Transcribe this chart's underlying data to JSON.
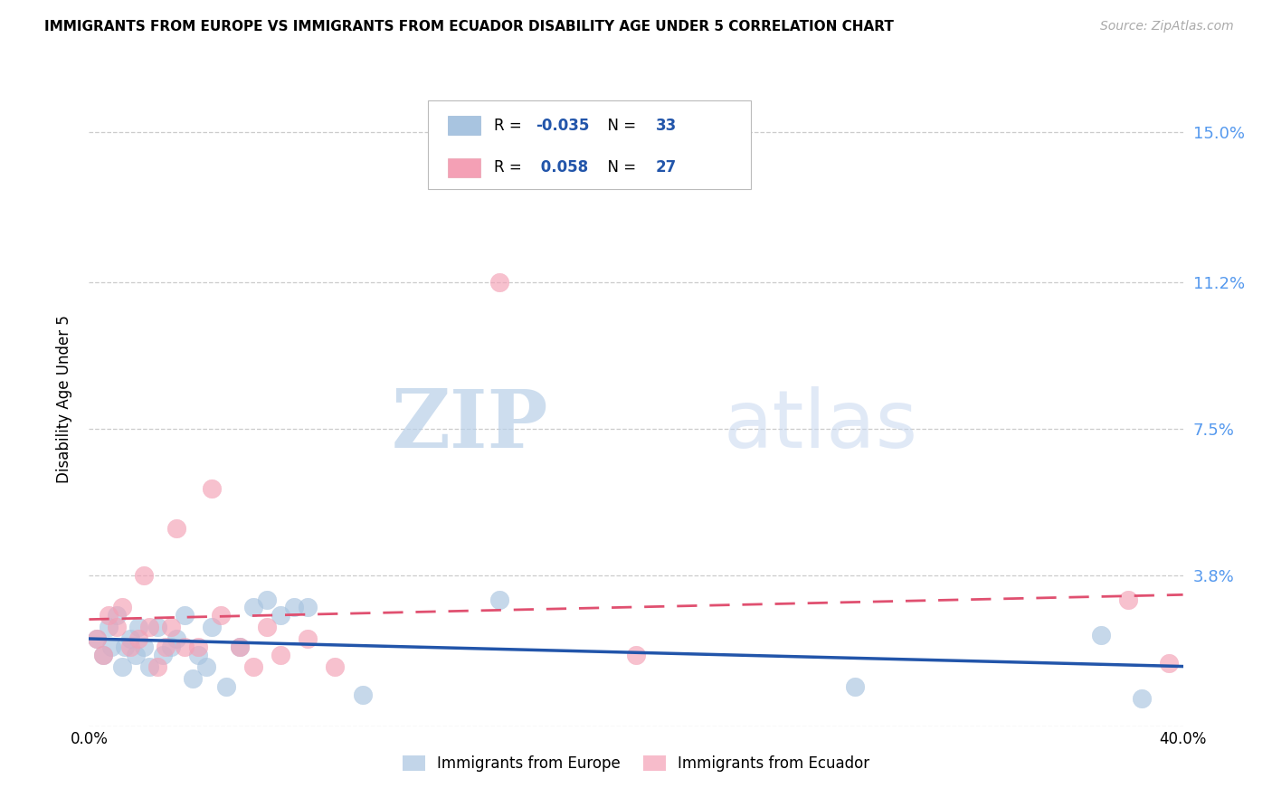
{
  "title": "IMMIGRANTS FROM EUROPE VS IMMIGRANTS FROM ECUADOR DISABILITY AGE UNDER 5 CORRELATION CHART",
  "source": "Source: ZipAtlas.com",
  "ylabel": "Disability Age Under 5",
  "xlim": [
    0.0,
    0.4
  ],
  "ylim": [
    0.0,
    0.165
  ],
  "yticks": [
    0.0,
    0.038,
    0.075,
    0.112,
    0.15
  ],
  "ytick_labels": [
    "",
    "3.8%",
    "7.5%",
    "11.2%",
    "15.0%"
  ],
  "xticks": [
    0.0,
    0.1,
    0.2,
    0.3,
    0.4
  ],
  "xtick_labels": [
    "0.0%",
    "",
    "",
    "",
    "40.0%"
  ],
  "europe_x": [
    0.003,
    0.005,
    0.007,
    0.008,
    0.01,
    0.012,
    0.013,
    0.015,
    0.017,
    0.018,
    0.02,
    0.022,
    0.025,
    0.027,
    0.03,
    0.032,
    0.035,
    0.038,
    0.04,
    0.043,
    0.045,
    0.05,
    0.055,
    0.06,
    0.065,
    0.07,
    0.075,
    0.08,
    0.1,
    0.15,
    0.28,
    0.37,
    0.385
  ],
  "europe_y": [
    0.022,
    0.018,
    0.025,
    0.02,
    0.028,
    0.015,
    0.02,
    0.022,
    0.018,
    0.025,
    0.02,
    0.015,
    0.025,
    0.018,
    0.02,
    0.022,
    0.028,
    0.012,
    0.018,
    0.015,
    0.025,
    0.01,
    0.02,
    0.03,
    0.032,
    0.028,
    0.03,
    0.03,
    0.008,
    0.032,
    0.01,
    0.023,
    0.007
  ],
  "ecuador_x": [
    0.003,
    0.005,
    0.007,
    0.01,
    0.012,
    0.015,
    0.018,
    0.02,
    0.022,
    0.025,
    0.028,
    0.03,
    0.032,
    0.035,
    0.04,
    0.045,
    0.048,
    0.055,
    0.06,
    0.065,
    0.07,
    0.08,
    0.09,
    0.15,
    0.2,
    0.38,
    0.395
  ],
  "ecuador_y": [
    0.022,
    0.018,
    0.028,
    0.025,
    0.03,
    0.02,
    0.022,
    0.038,
    0.025,
    0.015,
    0.02,
    0.025,
    0.05,
    0.02,
    0.02,
    0.06,
    0.028,
    0.02,
    0.015,
    0.025,
    0.018,
    0.022,
    0.015,
    0.112,
    0.018,
    0.032,
    0.016
  ],
  "europe_color": "#A8C4E0",
  "ecuador_color": "#F4A0B5",
  "europe_line_color": "#2255AA",
  "ecuador_line_color": "#E05070",
  "europe_R": "-0.035",
  "europe_N": "33",
  "ecuador_R": "0.058",
  "ecuador_N": "27",
  "watermark_zip": "ZIP",
  "watermark_atlas": "atlas",
  "background_color": "#ffffff",
  "grid_color": "#cccccc",
  "legend_R_color": "#2255AA",
  "legend_N_color": "#2255AA"
}
